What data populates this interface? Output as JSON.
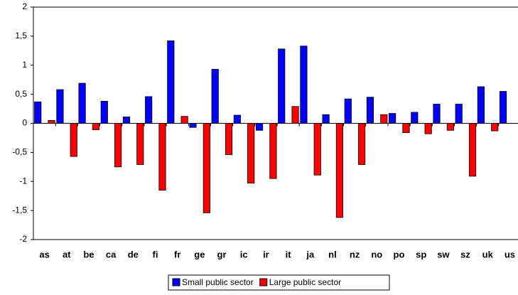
{
  "chart_data": {
    "type": "bar",
    "categories": [
      "as",
      "at",
      "be",
      "ca",
      "de",
      "fi",
      "fr",
      "ge",
      "gr",
      "ic",
      "ir",
      "it",
      "ja",
      "nl",
      "nz",
      "no",
      "po",
      "sp",
      "sw",
      "sz",
      "uk",
      "us"
    ],
    "series": [
      {
        "name": "Small public sector",
        "color": "#0000ff",
        "values": [
          0.37,
          0.58,
          0.69,
          0.38,
          0.11,
          0.46,
          1.42,
          -0.07,
          0.93,
          0.14,
          -0.12,
          1.28,
          1.33,
          0.15,
          0.42,
          0.45,
          0.17,
          0.19,
          0.33,
          0.33,
          0.63,
          0.55
        ]
      },
      {
        "name": "Large public sector",
        "color": "#ff0000",
        "values": [
          0.05,
          -0.57,
          -0.11,
          -0.75,
          -0.71,
          -1.15,
          0.12,
          -1.54,
          -0.54,
          -1.03,
          -0.95,
          0.29,
          -0.89,
          -1.62,
          -0.71,
          0.15,
          -0.16,
          -0.18,
          -0.12,
          -0.91,
          -0.13,
          null
        ]
      }
    ],
    "ylim": [
      -2,
      2
    ],
    "yticks": [
      -2,
      {
        "value": -1.5,
        "label": "-1,5"
      },
      -1,
      {
        "value": -0.5,
        "label": "-0,5"
      },
      0,
      {
        "value": 0.5,
        "label": "0,5"
      },
      1,
      {
        "value": 1.5,
        "label": "1,5"
      },
      2
    ],
    "legend": "bottom"
  }
}
